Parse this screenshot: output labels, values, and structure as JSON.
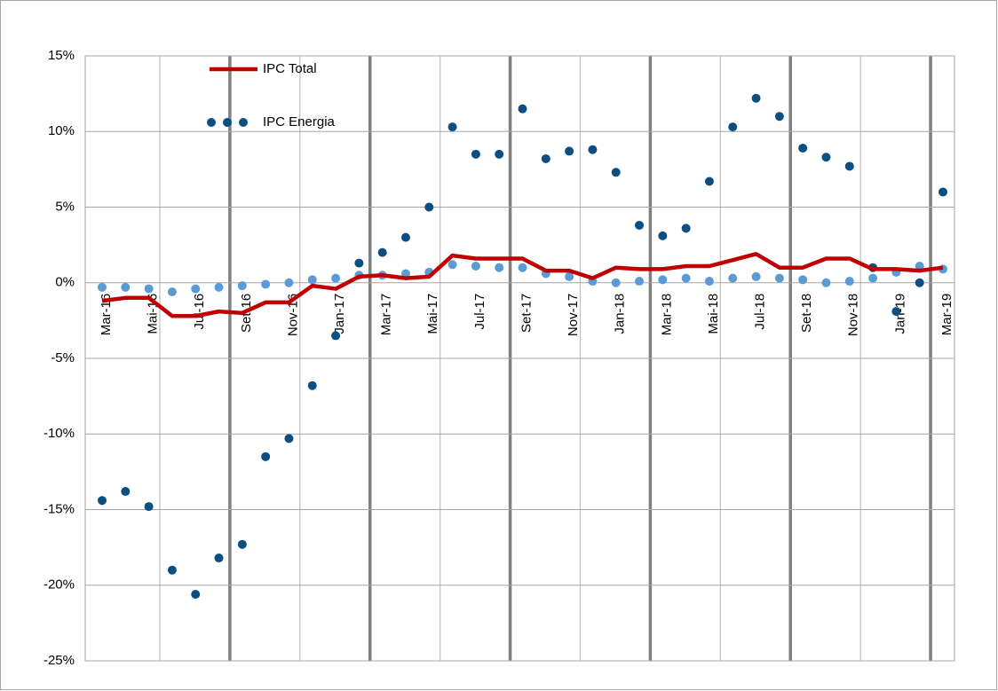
{
  "chart_data": {
    "type": "line",
    "categories": [
      "Mar-16",
      null,
      "Mai-16",
      null,
      "Jul-16",
      null,
      "Set-16",
      null,
      "Nov-16",
      null,
      "Jan-17",
      null,
      "Mar-17",
      null,
      "Mai-17",
      null,
      "Jul-17",
      null,
      "Set-17",
      null,
      "Nov-17",
      null,
      "Jan-18",
      null,
      "Mar-18",
      null,
      "Mai-18",
      null,
      "Jul-18",
      null,
      "Set-18",
      null,
      "Nov-18",
      null,
      "Jan-19",
      null,
      "Mar-19"
    ],
    "series": [
      {
        "name": "IPC Total",
        "color": "#c00000",
        "style": "line",
        "values": [
          -1.2,
          -1.0,
          -1.0,
          -2.2,
          -2.2,
          -1.9,
          -2.0,
          -1.3,
          -1.3,
          -0.2,
          -0.4,
          0.4,
          0.5,
          0.3,
          0.4,
          1.8,
          1.6,
          1.6,
          1.6,
          0.8,
          0.8,
          0.3,
          1.0,
          0.9,
          0.9,
          1.1,
          1.1,
          1.5,
          1.9,
          1.0,
          1.0,
          1.6,
          1.6,
          0.9,
          0.9,
          0.8,
          1.0
        ]
      },
      {
        "name": "IPC Energia",
        "color": "#0b4f82",
        "style": "dots",
        "values": [
          -14.4,
          -13.8,
          -14.8,
          -19.0,
          -20.6,
          -18.2,
          -17.3,
          -11.5,
          -10.3,
          -6.8,
          -3.5,
          1.3,
          2.0,
          3.0,
          5.0,
          10.3,
          8.5,
          8.5,
          11.5,
          8.2,
          8.7,
          8.8,
          7.3,
          3.8,
          3.1,
          3.6,
          6.7,
          10.3,
          12.2,
          11.0,
          8.9,
          8.3,
          7.7,
          1.0,
          -1.9,
          0.0,
          6.0
        ]
      },
      {
        "color": "#5b9bd5",
        "style": "dots",
        "values": [
          -0.3,
          -0.3,
          -0.4,
          -0.6,
          -0.4,
          -0.3,
          -0.2,
          -0.1,
          0.0,
          0.2,
          0.3,
          0.5,
          0.5,
          0.6,
          0.7,
          1.2,
          1.1,
          1.0,
          1.0,
          0.6,
          0.4,
          0.1,
          0.0,
          0.1,
          0.2,
          0.3,
          0.1,
          0.3,
          0.4,
          0.3,
          0.2,
          0.0,
          0.1,
          0.3,
          0.7,
          1.1,
          0.9
        ]
      }
    ],
    "ylim": [
      -25,
      15
    ],
    "yticks": [
      {
        "value": -25,
        "label": "-25%"
      },
      {
        "value": -20,
        "label": "-20%"
      },
      {
        "value": -15,
        "label": "-15%"
      },
      {
        "value": -10,
        "label": "-10%"
      },
      {
        "value": -5,
        "label": "-5%"
      },
      {
        "value": 0,
        "label": "0%"
      },
      {
        "value": 5,
        "label": "5%"
      },
      {
        "value": 10,
        "label": "10%"
      },
      {
        "value": 15,
        "label": "15%"
      }
    ],
    "grid": true
  }
}
